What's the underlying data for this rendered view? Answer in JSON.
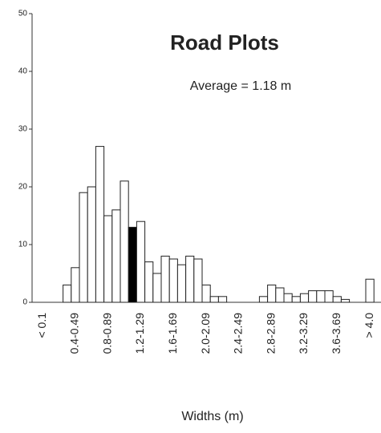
{
  "chart_data": {
    "type": "bar",
    "title": "Road Plots",
    "subtitle": "Average = 1.18 m",
    "x_label": "Widths (m)",
    "categories": [
      "< 0.1",
      null,
      null,
      null,
      "0.4-0.49",
      null,
      null,
      null,
      "0.8-0.89",
      null,
      null,
      null,
      "1.2-1.29",
      null,
      null,
      null,
      "1.6-1.69",
      null,
      null,
      null,
      "2.0-2.09",
      null,
      null,
      null,
      "2.4-2.49",
      null,
      null,
      null,
      "2.8-2.89",
      null,
      null,
      null,
      "3.2-3.29",
      null,
      null,
      null,
      "3.6-3.69",
      null,
      null,
      null,
      "> 4.0"
    ],
    "values": [
      0,
      0,
      0,
      3,
      6,
      19,
      20,
      27,
      15,
      16,
      21,
      13,
      14,
      7,
      5,
      8,
      7.5,
      6.5,
      8,
      7.5,
      3,
      1,
      1,
      0,
      0,
      0,
      0,
      1,
      3,
      2.5,
      1.5,
      1,
      1.5,
      2,
      2,
      2,
      1,
      0.5,
      0,
      0,
      4
    ],
    "colors": [
      "#fff",
      "#fff",
      "#fff",
      "#fff",
      "#fff",
      "#fff",
      "#fff",
      "#fff",
      "#fff",
      "#fff",
      "#fff",
      "#000",
      "#fff",
      "#fff",
      "#fff",
      "#fff",
      "#fff",
      "#fff",
      "#fff",
      "#fff",
      "#fff",
      "#fff",
      "#fff",
      "#fff",
      "#fff",
      "#fff",
      "#fff",
      "#fff",
      "#fff",
      "#fff",
      "#fff",
      "#fff",
      "#fff",
      "#fff",
      "#fff",
      "#fff",
      "#fff",
      "#fff",
      "#fff",
      "#fff",
      "#fff"
    ],
    "ylim": [
      0,
      50
    ],
    "yticks": [
      0,
      10,
      20,
      30,
      40,
      50
    ],
    "grid": false
  }
}
